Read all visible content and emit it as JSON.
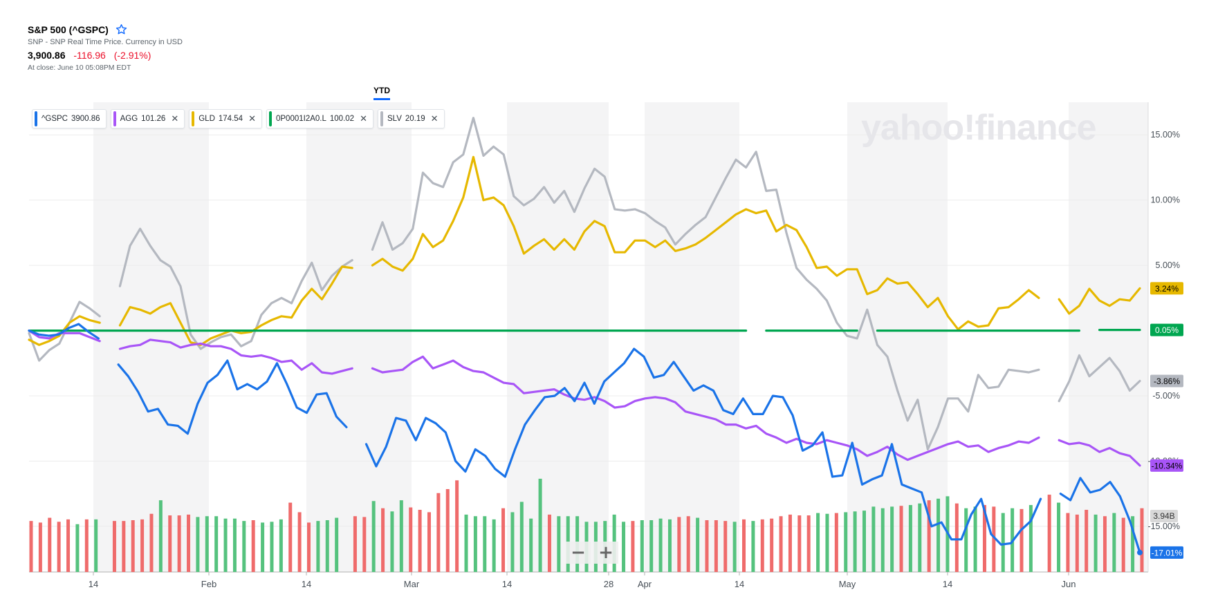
{
  "header": {
    "title": "S&P 500 (^GSPC)",
    "subtitle": "SNP - SNP Real Time Price. Currency in USD",
    "price": "3,900.86",
    "change": "-116.96",
    "change_pct": "(-2.91%)",
    "close_time": "At close: June 10 05:08PM EDT"
  },
  "tabs": [
    {
      "label": "YTD",
      "active": true
    }
  ],
  "watermark": "yahoo!finance",
  "legend": [
    {
      "symbol": "^GSPC",
      "value": "3900.86",
      "color": "#1a73e8",
      "removable": false
    },
    {
      "symbol": "AGG",
      "value": "101.26",
      "color": "#a855f7",
      "removable": true
    },
    {
      "symbol": "GLD",
      "value": "174.54",
      "color": "#e6b800",
      "removable": true
    },
    {
      "symbol": "0P0001I2A0.L",
      "value": "100.02",
      "color": "#00a650",
      "removable": true
    },
    {
      "symbol": "SLV",
      "value": "20.19",
      "color": "#b4b8c0",
      "removable": true
    }
  ],
  "zoom": {
    "minus": "−",
    "plus": "+"
  },
  "chart_data": {
    "type": "line",
    "x_tick_labels": [
      "14",
      "Feb",
      "14",
      "Mar",
      "14",
      "28",
      "Apr",
      "14",
      "May",
      "14",
      "Jun"
    ],
    "y_tick_labels": [
      "15.00%",
      "10.00%",
      "5.00%",
      "-5.00%",
      "-10.00%",
      "-15.00%"
    ],
    "y_ticks": [
      15,
      10,
      5,
      -5,
      -10,
      -15
    ],
    "ylim": [
      -18.5,
      17.5
    ],
    "volume_label": "3.94B",
    "end_labels": [
      {
        "series": "GLD",
        "text": "3.24%",
        "value": 3.24,
        "bg": "#e6b800",
        "fg": "#000000"
      },
      {
        "series": "0P0001I2A0.L",
        "text": "0.05%",
        "value": 0.05,
        "bg": "#00a650",
        "fg": "#ffffff"
      },
      {
        "series": "SLV",
        "text": "-3.86%",
        "value": -3.86,
        "bg": "#b4b8c0",
        "fg": "#000000"
      },
      {
        "series": "AGG",
        "text": "-10.34%",
        "value": -10.34,
        "bg": "#a855f7",
        "fg": "#000000"
      },
      {
        "series": "^GSPC",
        "text": "-17.01%",
        "value": -17.01,
        "bg": "#1a73e8",
        "fg": "#ffffff"
      }
    ],
    "series": [
      {
        "name": "SLV",
        "color": "#b4b8c0",
        "values": [
          -0.2,
          -2.3,
          -1.5,
          -1.0,
          0.6,
          2.2,
          1.7,
          1.1,
          null,
          3.4,
          6.5,
          7.8,
          6.5,
          5.4,
          4.9,
          3.4,
          -0.3,
          -1.4,
          -0.9,
          -0.5,
          -0.3,
          -1.2,
          -0.8,
          1.2,
          2.1,
          2.5,
          2.1,
          3.8,
          5.2,
          3.1,
          4.2,
          4.9,
          5.4,
          null,
          6.2,
          8.3,
          6.2,
          6.7,
          7.8,
          12.1,
          11.3,
          11.0,
          12.9,
          13.5,
          16.3,
          13.4,
          14.1,
          13.5,
          10.3,
          9.6,
          10.1,
          11.0,
          9.8,
          10.7,
          9.1,
          10.9,
          12.4,
          11.8,
          9.3,
          9.2,
          9.3,
          9.0,
          8.4,
          7.9,
          6.6,
          7.4,
          8.1,
          8.7,
          10.2,
          11.7,
          13.1,
          12.5,
          13.7,
          10.7,
          10.8,
          7.5,
          4.8,
          3.9,
          3.2,
          2.3,
          0.6,
          -0.4,
          -0.6,
          1.6,
          -1.1,
          -2.0,
          -4.6,
          -6.9,
          -5.3,
          -9.1,
          -7.4,
          -5.2,
          -5.2,
          -6.2,
          -3.4,
          -4.4,
          -4.3,
          -3.0,
          -3.1,
          -3.2,
          -3.0,
          null,
          -5.4,
          -3.9,
          -1.9,
          -3.5,
          -2.8,
          -2.1,
          -3.1,
          -4.6,
          -3.86
        ]
      },
      {
        "name": "GLD",
        "color": "#e6b800",
        "values": [
          -0.7,
          -1.1,
          -0.8,
          -0.4,
          0.6,
          1.1,
          0.8,
          0.6,
          null,
          0.4,
          1.8,
          1.6,
          1.3,
          1.8,
          2.1,
          0.6,
          -0.9,
          -1.1,
          -0.6,
          -0.3,
          0.0,
          -0.2,
          -0.1,
          0.4,
          0.8,
          1.1,
          1.0,
          2.3,
          3.2,
          2.4,
          3.6,
          4.9,
          4.8,
          null,
          5.0,
          5.5,
          4.9,
          4.6,
          5.5,
          7.4,
          6.4,
          6.9,
          8.4,
          10.2,
          13.3,
          10.0,
          10.2,
          9.6,
          8.0,
          5.9,
          6.5,
          7.0,
          6.2,
          7.0,
          6.2,
          7.6,
          8.4,
          8.0,
          6.0,
          6.0,
          6.9,
          6.9,
          6.4,
          6.9,
          6.1,
          6.3,
          6.6,
          7.1,
          7.7,
          8.3,
          8.9,
          9.3,
          9.0,
          9.2,
          7.6,
          8.1,
          7.7,
          6.4,
          4.8,
          4.9,
          4.2,
          4.7,
          4.7,
          2.8,
          3.1,
          4.0,
          3.6,
          3.7,
          2.8,
          1.8,
          2.5,
          1.1,
          0.1,
          0.7,
          0.3,
          0.4,
          1.7,
          1.8,
          2.4,
          3.1,
          2.5,
          null,
          2.4,
          1.3,
          1.9,
          3.2,
          2.3,
          1.9,
          2.4,
          2.3,
          3.24
        ]
      },
      {
        "name": "0P0001I2A0.L",
        "color": "#00a650",
        "values": [
          0.0,
          0.0,
          0.0,
          0.0,
          0.0,
          0.0,
          0.0,
          0.0,
          0.0,
          0.0,
          0.0,
          0.0,
          0.0,
          0.0,
          0.0,
          0.0,
          0.0,
          0.0,
          0.0,
          0.0,
          0.0,
          0.0,
          0.0,
          0.0,
          0.0,
          0.0,
          0.0,
          0.0,
          0.0,
          0.0,
          0.0,
          0.0,
          0.0,
          0.0,
          0.0,
          0.0,
          0.0,
          0.0,
          0.0,
          0.0,
          0.0,
          0.0,
          0.0,
          0.0,
          0.0,
          0.0,
          0.0,
          0.0,
          0.0,
          0.0,
          0.0,
          0.0,
          0.0,
          0.0,
          0.0,
          0.0,
          0.0,
          0.0,
          0.0,
          0.0,
          0.0,
          0.0,
          0.0,
          0.0,
          0.0,
          0.0,
          0.0,
          0.0,
          0.0,
          0.0,
          0.0,
          0.0,
          null,
          0.0,
          0.0,
          0.0,
          0.0,
          0.0,
          0.0,
          0.0,
          0.0,
          0.0,
          0.0,
          null,
          0.0,
          0.0,
          0.0,
          0.0,
          0.0,
          0.0,
          0.0,
          0.0,
          0.0,
          0.0,
          0.0,
          0.0,
          0.0,
          0.0,
          0.0,
          0.0,
          0.0,
          0.0,
          0.0,
          0.0,
          0.0,
          null,
          0.05,
          0.05,
          0.05,
          0.05,
          0.05
        ]
      },
      {
        "name": "AGG",
        "color": "#a855f7",
        "values": [
          0.0,
          -0.5,
          -0.6,
          -0.2,
          -0.2,
          -0.2,
          -0.5,
          -0.8,
          null,
          -1.4,
          -1.2,
          -1.1,
          -0.7,
          -0.8,
          -0.9,
          -1.3,
          -1.1,
          -1.0,
          -1.2,
          -1.2,
          -1.4,
          -1.9,
          -2.0,
          -1.9,
          -2.1,
          -2.4,
          -2.3,
          -3.0,
          -2.5,
          -3.2,
          -3.3,
          -3.1,
          -2.9,
          null,
          -2.9,
          -3.2,
          -3.1,
          -3.0,
          -2.4,
          -2.0,
          -2.9,
          -2.6,
          -2.3,
          -2.8,
          -3.1,
          -3.2,
          -3.6,
          -4.0,
          -4.1,
          -4.8,
          -4.7,
          -4.6,
          -4.5,
          -4.9,
          -5.2,
          -5.3,
          -5.1,
          -5.4,
          -5.9,
          -5.8,
          -5.4,
          -5.2,
          -5.1,
          -5.2,
          -5.5,
          -6.2,
          -6.4,
          -6.6,
          -6.8,
          -7.2,
          -7.2,
          -7.5,
          -7.3,
          -7.9,
          -8.2,
          -8.6,
          -8.3,
          -8.6,
          -8.7,
          -8.4,
          -8.6,
          -8.8,
          -9.1,
          -9.6,
          -9.3,
          -8.9,
          -9.5,
          -9.9,
          -9.6,
          -9.3,
          -9.0,
          -8.7,
          -8.5,
          -8.9,
          -8.8,
          -9.3,
          -9.0,
          -8.8,
          -8.5,
          -8.6,
          -8.2,
          null,
          -8.4,
          -8.7,
          -8.6,
          -8.8,
          -9.3,
          -9.0,
          -9.4,
          -9.6,
          -10.34
        ]
      },
      {
        "name": "^GSPC",
        "color": "#1a73e8",
        "values": [
          0.0,
          -0.3,
          -0.4,
          -0.3,
          0.2,
          0.5,
          -0.1,
          -0.6,
          null,
          -2.6,
          -3.5,
          -4.7,
          -6.2,
          -6.0,
          -7.2,
          -7.3,
          -7.9,
          -5.6,
          -4.0,
          -3.4,
          -2.3,
          -4.5,
          -4.1,
          -4.5,
          -3.9,
          -2.5,
          -4.1,
          -5.9,
          -6.3,
          -4.9,
          -4.8,
          -6.6,
          -7.4,
          null,
          -8.7,
          -10.4,
          -8.9,
          -6.7,
          -6.9,
          -8.4,
          -6.7,
          -7.1,
          -7.8,
          -10.0,
          -10.8,
          -9.1,
          -9.6,
          -10.6,
          -11.2,
          -9.1,
          -7.2,
          -6.1,
          -5.1,
          -5.0,
          -4.4,
          -5.4,
          -4.0,
          -5.6,
          -3.9,
          -3.2,
          -2.5,
          -1.4,
          -2.0,
          -3.6,
          -3.4,
          -2.4,
          -3.5,
          -4.6,
          -4.2,
          -4.6,
          -6.1,
          -6.4,
          -5.2,
          -6.4,
          -6.4,
          -5.0,
          -5.1,
          -6.5,
          -9.2,
          -8.8,
          -7.8,
          -11.2,
          -11.1,
          -8.6,
          -11.8,
          -11.4,
          -11.1,
          -8.7,
          -11.8,
          -12.1,
          -12.4,
          -15.0,
          -14.7,
          -16.0,
          -16.0,
          -14.1,
          -12.9,
          -15.6,
          -16.4,
          -16.3,
          -15.3,
          -14.6,
          -12.9,
          null,
          -12.5,
          -13.0,
          -11.3,
          -12.4,
          -12.2,
          -11.6,
          -12.7,
          -14.6,
          -17.01
        ]
      }
    ],
    "volume": {
      "colors": {
        "up": "#55c27e",
        "down": "#ef6b6b"
      },
      "values": [
        [
          64,
          "d"
        ],
        [
          62,
          "d"
        ],
        [
          68,
          "d"
        ],
        [
          63,
          "d"
        ],
        [
          66,
          "d"
        ],
        [
          60,
          "u"
        ],
        [
          66,
          "d"
        ],
        [
          66,
          "u"
        ],
        [
          null,
          null
        ],
        [
          64,
          "d"
        ],
        [
          64,
          "d"
        ],
        [
          65,
          "d"
        ],
        [
          66,
          "d"
        ],
        [
          73,
          "d"
        ],
        [
          90,
          "u"
        ],
        [
          71,
          "d"
        ],
        [
          71,
          "d"
        ],
        [
          72,
          "d"
        ],
        [
          69,
          "u"
        ],
        [
          70,
          "u"
        ],
        [
          70,
          "u"
        ],
        [
          67,
          "u"
        ],
        [
          67,
          "u"
        ],
        [
          64,
          "u"
        ],
        [
          65,
          "d"
        ],
        [
          62,
          "u"
        ],
        [
          63,
          "u"
        ],
        [
          66,
          "u"
        ],
        [
          87,
          "d"
        ],
        [
          75,
          "d"
        ],
        [
          62,
          "d"
        ],
        [
          64,
          "u"
        ],
        [
          65,
          "u"
        ],
        [
          68,
          "u"
        ],
        [
          null,
          null
        ],
        [
          70,
          "d"
        ],
        [
          69,
          "d"
        ],
        [
          89,
          "u"
        ],
        [
          80,
          "d"
        ],
        [
          76,
          "u"
        ],
        [
          90,
          "u"
        ],
        [
          81,
          "d"
        ],
        [
          78,
          "d"
        ],
        [
          75,
          "d"
        ],
        [
          99,
          "d"
        ],
        [
          104,
          "d"
        ],
        [
          115,
          "d"
        ],
        [
          72,
          "u"
        ],
        [
          70,
          "u"
        ],
        [
          70,
          "u"
        ],
        [
          66,
          "u"
        ],
        [
          80,
          "d"
        ],
        [
          75,
          "u"
        ],
        [
          88,
          "u"
        ],
        [
          67,
          "u"
        ],
        [
          117,
          "u"
        ],
        [
          72,
          "d"
        ],
        [
          70,
          "u"
        ],
        [
          70,
          "u"
        ],
        [
          70,
          "u"
        ],
        [
          63,
          "u"
        ],
        [
          63,
          "u"
        ],
        [
          64,
          "u"
        ],
        [
          72,
          "u"
        ],
        [
          63,
          "u"
        ],
        [
          64,
          "d"
        ],
        [
          65,
          "u"
        ],
        [
          65,
          "u"
        ],
        [
          67,
          "u"
        ],
        [
          66,
          "u"
        ],
        [
          69,
          "d"
        ],
        [
          70,
          "d"
        ],
        [
          68,
          "u"
        ],
        [
          65,
          "d"
        ],
        [
          65,
          "d"
        ],
        [
          64,
          "d"
        ],
        [
          63,
          "u"
        ],
        [
          66,
          "d"
        ],
        [
          64,
          "u"
        ],
        [
          66,
          "d"
        ],
        [
          67,
          "d"
        ],
        [
          70,
          "d"
        ],
        [
          72,
          "d"
        ],
        [
          71,
          "d"
        ],
        [
          71,
          "d"
        ],
        [
          74,
          "u"
        ],
        [
          73,
          "u"
        ],
        [
          74,
          "d"
        ],
        [
          75,
          "u"
        ],
        [
          76,
          "u"
        ],
        [
          77,
          "u"
        ],
        [
          82,
          "u"
        ],
        [
          80,
          "u"
        ],
        [
          82,
          "u"
        ],
        [
          83,
          "d"
        ],
        [
          84,
          "u"
        ],
        [
          86,
          "u"
        ],
        [
          90,
          "d"
        ],
        [
          92,
          "u"
        ],
        [
          95,
          "u"
        ],
        [
          86,
          "d"
        ],
        [
          80,
          "u"
        ],
        [
          82,
          "u"
        ],
        [
          84,
          "d"
        ],
        [
          82,
          "d"
        ],
        [
          74,
          "u"
        ],
        [
          80,
          "u"
        ],
        [
          79,
          "d"
        ],
        [
          84,
          "u"
        ],
        [
          null,
          null
        ],
        [
          97,
          "d"
        ],
        [
          87,
          "u"
        ],
        [
          74,
          "d"
        ],
        [
          72,
          "d"
        ],
        [
          78,
          "d"
        ],
        [
          72,
          "u"
        ],
        [
          70,
          "d"
        ],
        [
          74,
          "u"
        ],
        [
          68,
          "d"
        ],
        [
          70,
          "u"
        ],
        [
          80,
          "d"
        ]
      ]
    }
  }
}
